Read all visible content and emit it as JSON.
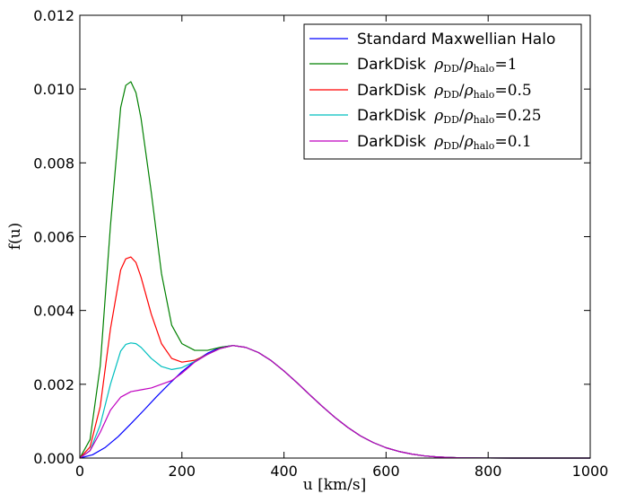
{
  "chart_data": {
    "type": "line",
    "title": "",
    "xlabel": "u [km/s]",
    "ylabel": "f(u)",
    "xlim": [
      0,
      1000
    ],
    "ylim": [
      0,
      0.012
    ],
    "xticks": [
      "0",
      "200",
      "400",
      "600",
      "800",
      "1000"
    ],
    "yticks": [
      "0.000",
      "0.002",
      "0.004",
      "0.006",
      "0.008",
      "0.010",
      "0.012"
    ],
    "grid": false,
    "legend_position": "top-right",
    "series": [
      {
        "name": "Standard Maxwellian Halo",
        "label_text": "Standard Maxwellian Halo",
        "color": "#0000ff",
        "x": [
          0,
          25,
          50,
          75,
          100,
          125,
          150,
          175,
          200,
          225,
          250,
          275,
          300,
          325,
          350,
          375,
          400,
          425,
          450,
          475,
          500,
          525,
          550,
          575,
          600,
          625,
          650,
          675,
          700,
          725,
          750,
          800,
          850,
          900,
          1000
        ],
        "y": [
          0,
          9e-05,
          0.00029,
          0.00058,
          0.00093,
          0.00129,
          0.00166,
          0.00201,
          0.00234,
          0.00262,
          0.00284,
          0.003,
          0.00305,
          0.003,
          0.00286,
          0.00264,
          0.00236,
          0.00205,
          0.00172,
          0.0014,
          0.0011,
          0.00083,
          0.0006,
          0.00042,
          0.00028,
          0.00018,
          0.00011,
          6e-05,
          3e-05,
          1.5e-05,
          6e-06,
          1e-06,
          0,
          0,
          0
        ]
      },
      {
        "name": "DarkDisk ρDD/ρhalo=1",
        "label_text": "DarkDisk",
        "label_ratio_1": "DD",
        "label_ratio_2": "halo",
        "label_value": "1",
        "color": "#008000",
        "x": [
          0,
          20,
          40,
          60,
          80,
          90,
          100,
          110,
          120,
          140,
          160,
          180,
          200,
          225,
          250,
          275,
          300,
          325,
          350,
          375,
          400,
          425,
          450,
          475,
          500,
          525,
          550,
          575,
          600,
          625,
          650,
          675,
          700,
          725,
          750,
          800,
          850,
          900,
          1000
        ],
        "y": [
          0,
          0.0005,
          0.0025,
          0.0063,
          0.0095,
          0.0101,
          0.0102,
          0.0099,
          0.0092,
          0.0072,
          0.005,
          0.0036,
          0.0031,
          0.00292,
          0.00292,
          0.003,
          0.00305,
          0.003,
          0.00286,
          0.00264,
          0.00236,
          0.00205,
          0.00172,
          0.0014,
          0.0011,
          0.00083,
          0.0006,
          0.00042,
          0.00028,
          0.00018,
          0.00011,
          6e-05,
          3e-05,
          1.5e-05,
          6e-06,
          1e-06,
          0,
          0,
          0
        ]
      },
      {
        "name": "DarkDisk ρDD/ρhalo=0.5",
        "label_text": "DarkDisk",
        "label_ratio_1": "DD",
        "label_ratio_2": "halo",
        "label_value": "0.5",
        "color": "#ff0000",
        "x": [
          0,
          20,
          40,
          60,
          80,
          90,
          100,
          110,
          120,
          140,
          160,
          180,
          200,
          225,
          250,
          275,
          300,
          325,
          350,
          375,
          400,
          425,
          450,
          475,
          500,
          525,
          550,
          575,
          600,
          625,
          650,
          675,
          700,
          725,
          750,
          800,
          850,
          900,
          1000
        ],
        "y": [
          0,
          0.0003,
          0.0014,
          0.0035,
          0.0051,
          0.0054,
          0.00545,
          0.0053,
          0.0049,
          0.0039,
          0.0031,
          0.0027,
          0.0026,
          0.00265,
          0.00281,
          0.00297,
          0.00305,
          0.003,
          0.00286,
          0.00264,
          0.00236,
          0.00205,
          0.00172,
          0.0014,
          0.0011,
          0.00083,
          0.0006,
          0.00042,
          0.00028,
          0.00018,
          0.00011,
          6e-05,
          3e-05,
          1.5e-05,
          6e-06,
          1e-06,
          0,
          0,
          0
        ]
      },
      {
        "name": "DarkDisk ρDD/ρhalo=0.25",
        "label_text": "DarkDisk",
        "label_ratio_1": "DD",
        "label_ratio_2": "halo",
        "label_value": "0.25",
        "color": "#00bfbf",
        "x": [
          0,
          20,
          40,
          60,
          80,
          90,
          100,
          110,
          120,
          140,
          160,
          180,
          200,
          225,
          250,
          275,
          300,
          325,
          350,
          375,
          400,
          425,
          450,
          475,
          500,
          525,
          550,
          575,
          600,
          625,
          650,
          675,
          700,
          725,
          750,
          800,
          850,
          900,
          1000
        ],
        "y": [
          0,
          0.0002,
          0.0009,
          0.002,
          0.0029,
          0.00308,
          0.00312,
          0.0031,
          0.003,
          0.0027,
          0.00248,
          0.0024,
          0.00245,
          0.00262,
          0.00281,
          0.00297,
          0.00305,
          0.003,
          0.00286,
          0.00264,
          0.00236,
          0.00205,
          0.00172,
          0.0014,
          0.0011,
          0.00083,
          0.0006,
          0.00042,
          0.00028,
          0.00018,
          0.00011,
          6e-05,
          3e-05,
          1.5e-05,
          6e-06,
          1e-06,
          0,
          0,
          0
        ]
      },
      {
        "name": "DarkDisk ρDD/ρhalo=0.1",
        "label_text": "DarkDisk",
        "label_ratio_1": "DD",
        "label_ratio_2": "halo",
        "label_value": "0.1",
        "color": "#bf00bf",
        "x": [
          0,
          20,
          40,
          60,
          80,
          100,
          120,
          140,
          160,
          180,
          200,
          225,
          250,
          275,
          300,
          325,
          350,
          375,
          400,
          425,
          450,
          475,
          500,
          525,
          550,
          575,
          600,
          625,
          650,
          675,
          700,
          725,
          750,
          800,
          850,
          900,
          1000
        ],
        "y": [
          0,
          0.0002,
          0.0007,
          0.0013,
          0.00165,
          0.0018,
          0.00185,
          0.0019,
          0.002,
          0.0021,
          0.0023,
          0.0026,
          0.00281,
          0.00297,
          0.00305,
          0.003,
          0.00286,
          0.00264,
          0.00236,
          0.00205,
          0.00172,
          0.0014,
          0.0011,
          0.00083,
          0.0006,
          0.00042,
          0.00028,
          0.00018,
          0.00011,
          6e-05,
          3e-05,
          1.5e-05,
          6e-06,
          1e-06,
          0,
          0,
          0
        ]
      }
    ]
  }
}
